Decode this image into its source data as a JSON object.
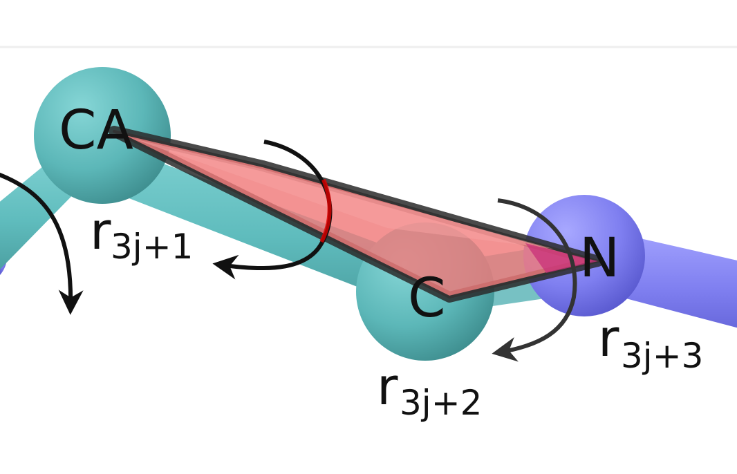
{
  "diagram": {
    "atoms": [
      {
        "id": "CA",
        "label": "CA",
        "element": "carbon",
        "color": "#62c0c0"
      },
      {
        "id": "C",
        "label": "C",
        "element": "carbon",
        "color": "#62c0c0"
      },
      {
        "id": "N",
        "label": "N",
        "element": "nitrogen",
        "color": "#8080f0"
      }
    ],
    "bond_color": "#6cc7c9",
    "nitrogen_bond_color": "#8585ef",
    "plane_color": "#f07a7a",
    "arrow_color": "#111111",
    "rotation_labels": [
      {
        "id": "r3j1",
        "base": "r",
        "subscript": "3j+1"
      },
      {
        "id": "r3j2",
        "base": "r",
        "subscript": "3j+2"
      },
      {
        "id": "r3j3",
        "base": "r",
        "subscript": "3j+3"
      }
    ]
  }
}
